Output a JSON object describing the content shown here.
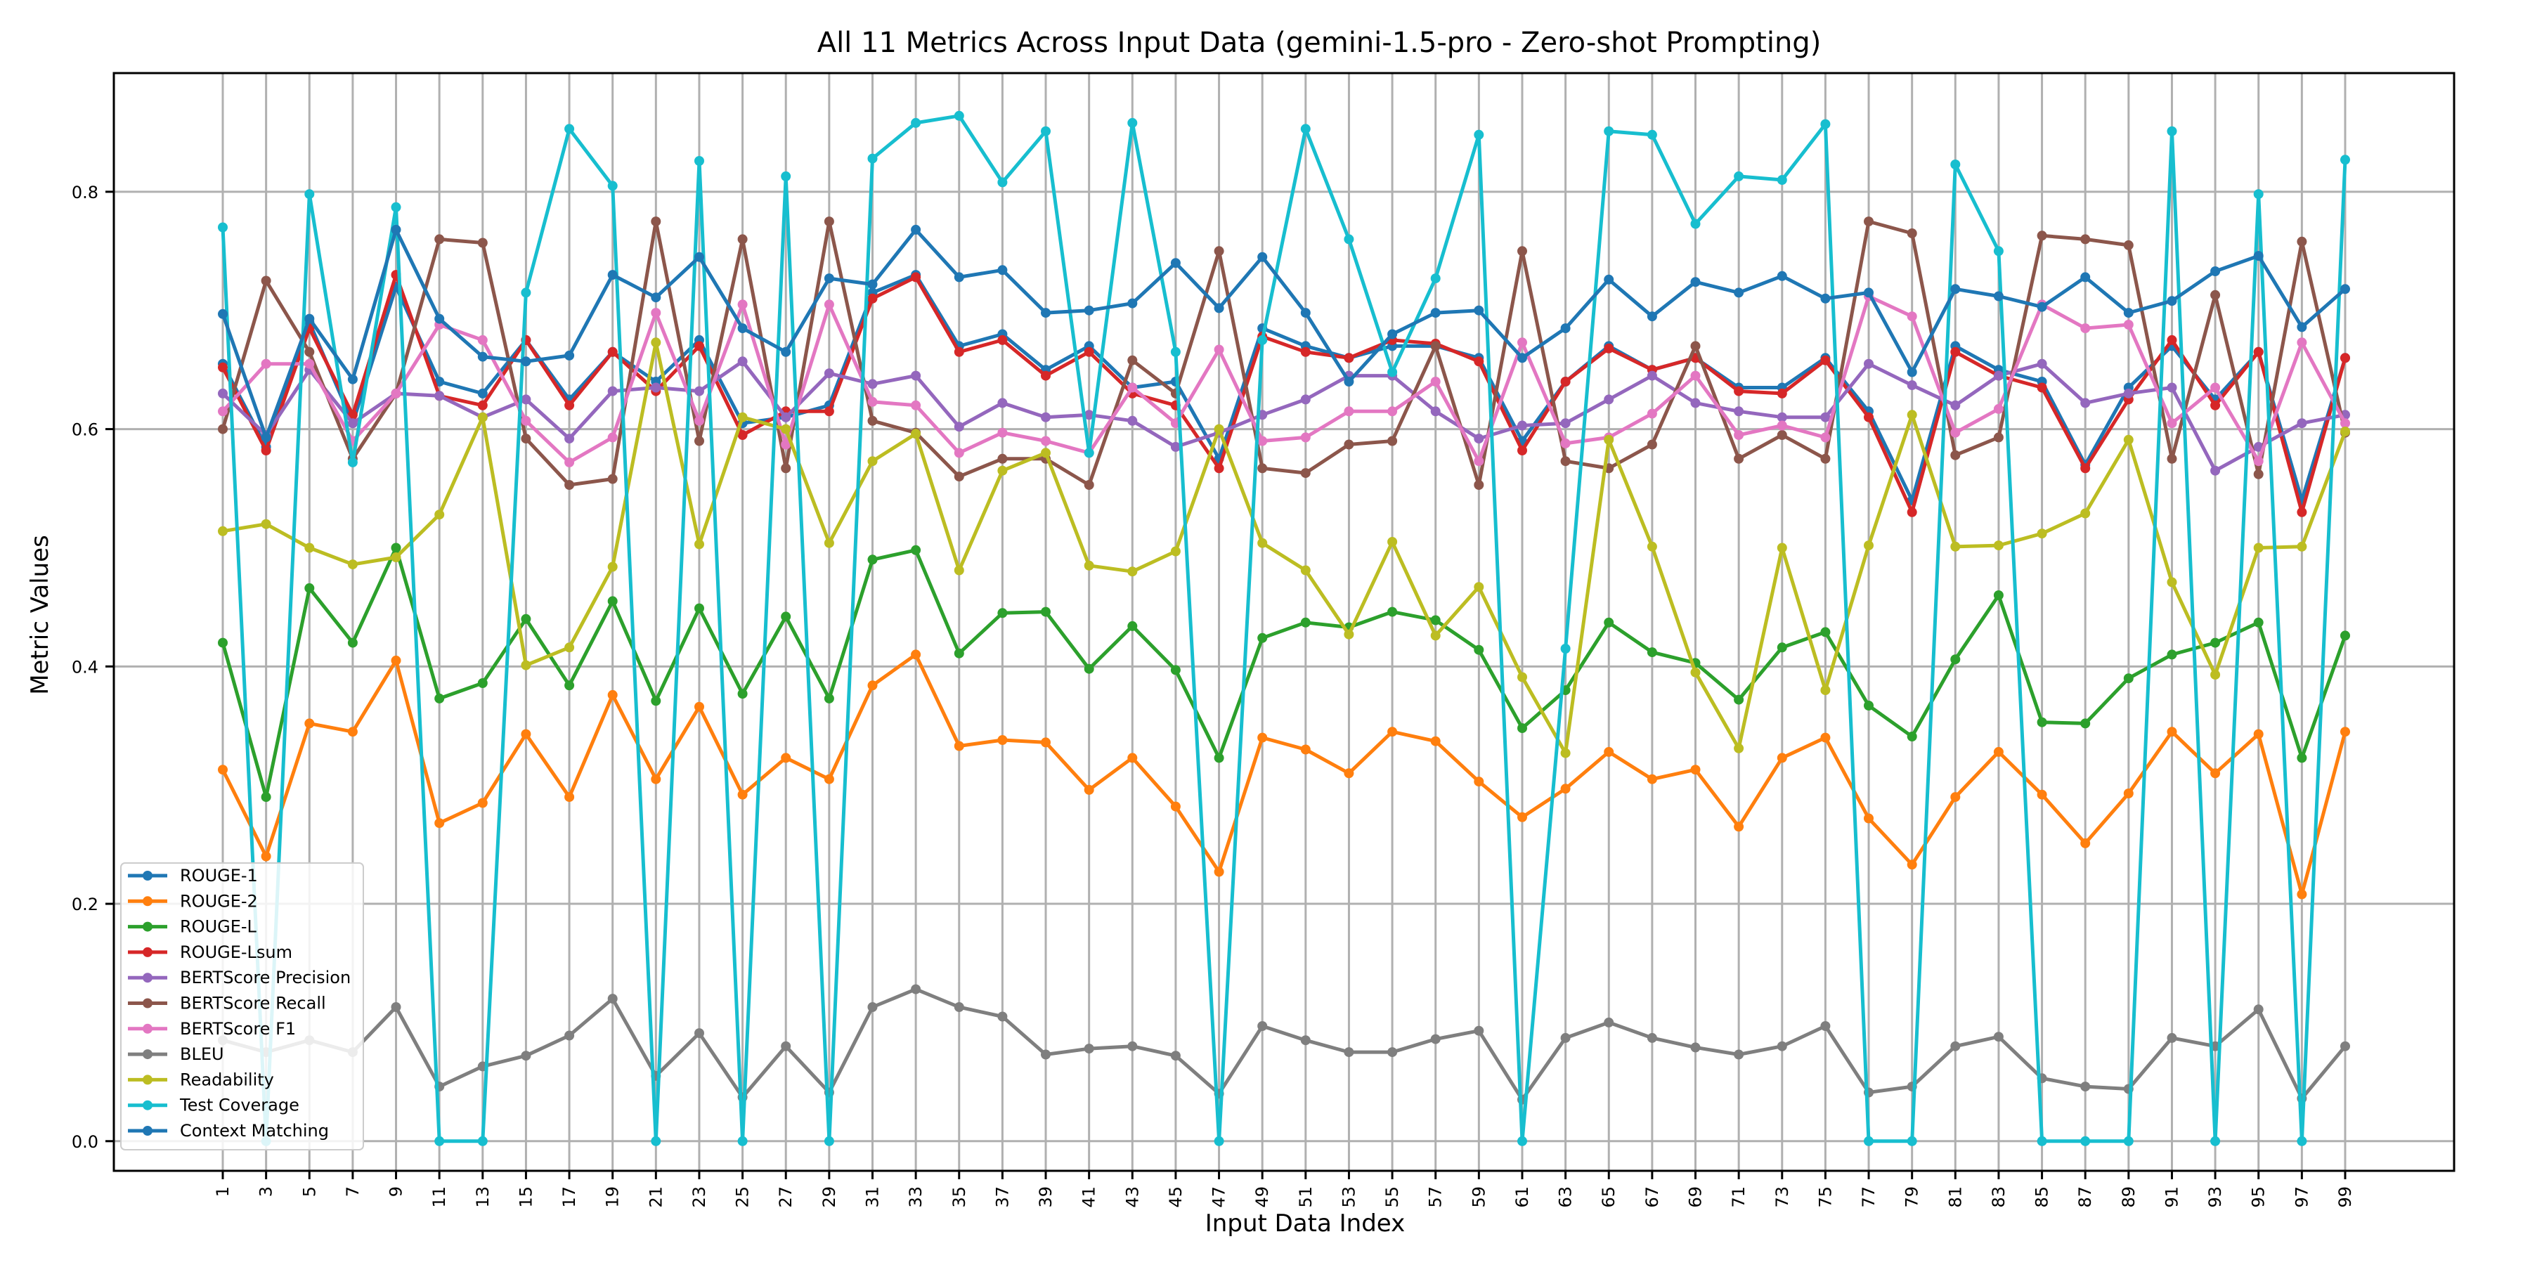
{
  "chart_data": {
    "type": "line",
    "title": "All 11 Metrics Across Input Data (gemini-1.5-pro - Zero-shot Prompting)",
    "xlabel": "Input Data Index",
    "ylabel": "Metric Values",
    "x": [
      1,
      3,
      5,
      7,
      9,
      11,
      13,
      15,
      17,
      19,
      21,
      23,
      25,
      27,
      29,
      31,
      33,
      35,
      37,
      39,
      41,
      43,
      45,
      47,
      49,
      51,
      53,
      55,
      57,
      59,
      61,
      63,
      65,
      67,
      69,
      71,
      73,
      75,
      77,
      79,
      81,
      83,
      85,
      87,
      89,
      91,
      93,
      95,
      97,
      99
    ],
    "x_tick_labels": [
      "1",
      "3",
      "5",
      "7",
      "9",
      "11",
      "13",
      "15",
      "17",
      "19",
      "21",
      "23",
      "25",
      "27",
      "29",
      "31",
      "33",
      "35",
      "37",
      "39",
      "41",
      "43",
      "45",
      "47",
      "49",
      "51",
      "53",
      "55",
      "57",
      "59",
      "61",
      "63",
      "65",
      "67",
      "69",
      "71",
      "73",
      "75",
      "77",
      "79",
      "81",
      "83",
      "85",
      "87",
      "89",
      "91",
      "93",
      "95",
      "97",
      "99"
    ],
    "ylim": [
      -0.025,
      0.9
    ],
    "y_ticks": [
      0.0,
      0.2,
      0.4,
      0.6,
      0.8
    ],
    "y_tick_labels": [
      "0.0",
      "0.2",
      "0.4",
      "0.6",
      "0.8"
    ],
    "grid": true,
    "legend_position": "lower-left",
    "series": [
      {
        "name": "ROUGE-1",
        "color": "#1f77b4",
        "values": [
          0.655,
          0.585,
          0.69,
          0.605,
          0.72,
          0.64,
          0.63,
          0.675,
          0.625,
          0.665,
          0.64,
          0.675,
          0.605,
          0.61,
          0.62,
          0.715,
          0.73,
          0.67,
          0.68,
          0.65,
          0.67,
          0.635,
          0.64,
          0.575,
          0.685,
          0.67,
          0.66,
          0.67,
          0.67,
          0.66,
          0.59,
          0.64,
          0.67,
          0.65,
          0.66,
          0.635,
          0.635,
          0.66,
          0.615,
          0.54,
          0.67,
          0.65,
          0.64,
          0.57,
          0.635,
          0.67,
          0.625,
          0.665,
          0.54,
          0.66
        ]
      },
      {
        "name": "ROUGE-2",
        "color": "#ff7f0e",
        "values": [
          0.313,
          0.24,
          0.352,
          0.345,
          0.405,
          0.268,
          0.285,
          0.343,
          0.29,
          0.376,
          0.305,
          0.366,
          0.292,
          0.323,
          0.305,
          0.384,
          0.41,
          0.333,
          0.338,
          0.336,
          0.296,
          0.323,
          0.282,
          0.227,
          0.34,
          0.33,
          0.31,
          0.345,
          0.337,
          0.303,
          0.273,
          0.297,
          0.328,
          0.305,
          0.313,
          0.265,
          0.323,
          0.34,
          0.272,
          0.233,
          0.29,
          0.328,
          0.292,
          0.251,
          0.293,
          0.345,
          0.31,
          0.343,
          0.208,
          0.345
        ]
      },
      {
        "name": "ROUGE-L",
        "color": "#2ca02c",
        "values": [
          0.42,
          0.29,
          0.466,
          0.42,
          0.5,
          0.373,
          0.386,
          0.44,
          0.384,
          0.455,
          0.371,
          0.449,
          0.377,
          0.442,
          0.373,
          0.49,
          0.498,
          0.411,
          0.445,
          0.446,
          0.398,
          0.434,
          0.397,
          0.323,
          0.424,
          0.437,
          0.433,
          0.446,
          0.439,
          0.414,
          0.348,
          0.38,
          0.437,
          0.412,
          0.403,
          0.372,
          0.416,
          0.429,
          0.367,
          0.341,
          0.406,
          0.46,
          0.353,
          0.352,
          0.39,
          0.41,
          0.42,
          0.437,
          0.323,
          0.426
        ]
      },
      {
        "name": "ROUGE-Lsum",
        "color": "#d62728",
        "values": [
          0.652,
          0.582,
          0.685,
          0.612,
          0.73,
          0.628,
          0.62,
          0.675,
          0.62,
          0.665,
          0.632,
          0.67,
          0.595,
          0.615,
          0.615,
          0.71,
          0.728,
          0.665,
          0.675,
          0.645,
          0.665,
          0.63,
          0.62,
          0.567,
          0.678,
          0.665,
          0.66,
          0.675,
          0.672,
          0.657,
          0.582,
          0.64,
          0.668,
          0.65,
          0.66,
          0.632,
          0.63,
          0.658,
          0.61,
          0.53,
          0.665,
          0.645,
          0.635,
          0.567,
          0.625,
          0.675,
          0.62,
          0.665,
          0.53,
          0.66
        ]
      },
      {
        "name": "BERTScore Precision",
        "color": "#9467bd",
        "values": [
          0.63,
          0.595,
          0.65,
          0.605,
          0.63,
          0.628,
          0.61,
          0.625,
          0.592,
          0.632,
          0.635,
          0.632,
          0.657,
          0.61,
          0.647,
          0.638,
          0.645,
          0.602,
          0.622,
          0.61,
          0.612,
          0.607,
          0.585,
          0.597,
          0.612,
          0.625,
          0.645,
          0.645,
          0.615,
          0.592,
          0.603,
          0.605,
          0.625,
          0.645,
          0.622,
          0.615,
          0.61,
          0.61,
          0.655,
          0.637,
          0.62,
          0.645,
          0.655,
          0.622,
          0.63,
          0.635,
          0.565,
          0.585,
          0.605,
          0.612
        ]
      },
      {
        "name": "BERTScore Recall",
        "color": "#8c564b",
        "values": [
          0.6,
          0.725,
          0.665,
          0.575,
          0.63,
          0.76,
          0.757,
          0.592,
          0.553,
          0.558,
          0.775,
          0.59,
          0.76,
          0.567,
          0.775,
          0.607,
          0.597,
          0.56,
          0.575,
          0.575,
          0.553,
          0.658,
          0.63,
          0.75,
          0.567,
          0.563,
          0.587,
          0.59,
          0.67,
          0.553,
          0.75,
          0.573,
          0.567,
          0.587,
          0.67,
          0.575,
          0.595,
          0.575,
          0.775,
          0.765,
          0.578,
          0.593,
          0.763,
          0.76,
          0.755,
          0.575,
          0.713,
          0.562,
          0.758,
          0.597
        ]
      },
      {
        "name": "BERTScore F1",
        "color": "#e377c2",
        "values": [
          0.615,
          0.655,
          0.655,
          0.59,
          0.63,
          0.688,
          0.675,
          0.607,
          0.572,
          0.593,
          0.698,
          0.607,
          0.705,
          0.587,
          0.705,
          0.623,
          0.62,
          0.58,
          0.597,
          0.59,
          0.58,
          0.635,
          0.605,
          0.667,
          0.59,
          0.593,
          0.615,
          0.615,
          0.64,
          0.573,
          0.673,
          0.588,
          0.593,
          0.613,
          0.645,
          0.595,
          0.603,
          0.593,
          0.712,
          0.695,
          0.597,
          0.617,
          0.705,
          0.685,
          0.688,
          0.605,
          0.635,
          0.573,
          0.673,
          0.605
        ]
      },
      {
        "name": "BLEU",
        "color": "#7f7f7f",
        "values": [
          0.085,
          0.075,
          0.085,
          0.075,
          0.113,
          0.046,
          0.063,
          0.072,
          0.089,
          0.12,
          0.055,
          0.091,
          0.037,
          0.08,
          0.041,
          0.113,
          0.128,
          0.113,
          0.105,
          0.073,
          0.078,
          0.08,
          0.072,
          0.04,
          0.097,
          0.085,
          0.075,
          0.075,
          0.086,
          0.093,
          0.035,
          0.087,
          0.1,
          0.087,
          0.079,
          0.073,
          0.08,
          0.097,
          0.041,
          0.046,
          0.08,
          0.088,
          0.053,
          0.046,
          0.044,
          0.087,
          0.08,
          0.111,
          0.036,
          0.08
        ]
      },
      {
        "name": "Readability",
        "color": "#bcbd22",
        "values": [
          0.514,
          0.52,
          0.5,
          0.486,
          0.492,
          0.528,
          0.61,
          0.401,
          0.416,
          0.484,
          0.673,
          0.503,
          0.61,
          0.6,
          0.504,
          0.573,
          0.596,
          0.481,
          0.565,
          0.58,
          0.485,
          0.48,
          0.497,
          0.6,
          0.504,
          0.481,
          0.427,
          0.505,
          0.426,
          0.467,
          0.391,
          0.327,
          0.591,
          0.501,
          0.395,
          0.331,
          0.5,
          0.38,
          0.502,
          0.612,
          0.501,
          0.502,
          0.512,
          0.529,
          0.591,
          0.471,
          0.393,
          0.5,
          0.501,
          0.598
        ]
      },
      {
        "name": "Test Coverage",
        "color": "#17becf",
        "values": [
          0.77,
          0.0,
          0.798,
          0.572,
          0.787,
          0.0,
          0.0,
          0.715,
          0.853,
          0.805,
          0.0,
          0.826,
          0.0,
          0.813,
          0.0,
          0.828,
          0.858,
          0.864,
          0.808,
          0.851,
          0.58,
          0.858,
          0.665,
          0.0,
          0.675,
          0.853,
          0.76,
          0.648,
          0.727,
          0.848,
          0.0,
          0.415,
          0.851,
          0.848,
          0.773,
          0.813,
          0.81,
          0.857,
          0.0,
          0.0,
          0.823,
          0.75,
          0.0,
          0.0,
          0.0,
          0.851,
          0.0,
          0.798,
          0.0,
          0.827
        ]
      },
      {
        "name": "Context Matching",
        "color": "#1f77b4",
        "values": [
          0.697,
          0.593,
          0.693,
          0.642,
          0.768,
          0.693,
          0.661,
          0.657,
          0.662,
          0.73,
          0.711,
          0.745,
          0.685,
          0.665,
          0.727,
          0.722,
          0.768,
          0.728,
          0.734,
          0.698,
          0.7,
          0.706,
          0.74,
          0.702,
          0.745,
          0.698,
          0.64,
          0.68,
          0.698,
          0.7,
          0.66,
          0.685,
          0.726,
          0.695,
          0.724,
          0.715,
          0.729,
          0.71,
          0.715,
          0.648,
          0.718,
          0.712,
          0.703,
          0.728,
          0.698,
          0.708,
          0.733,
          0.746,
          0.686,
          0.718
        ]
      }
    ]
  }
}
